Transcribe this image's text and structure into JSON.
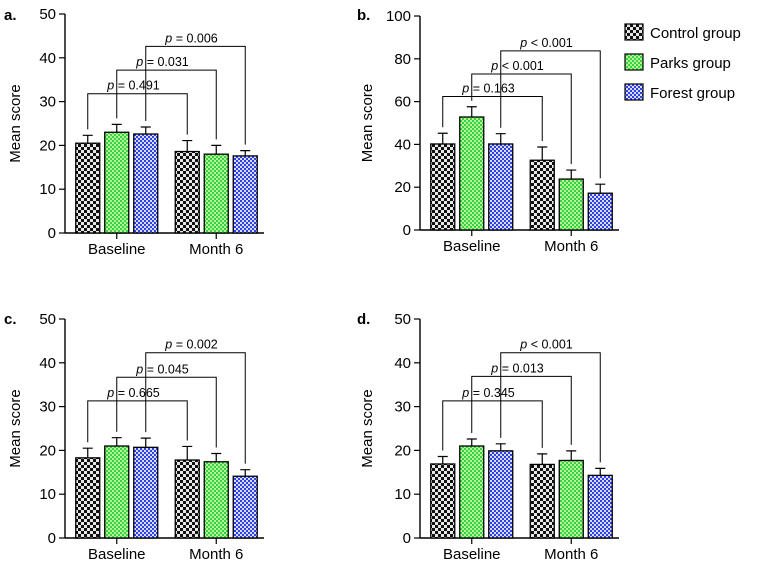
{
  "legend": {
    "items": [
      {
        "label": "Control group",
        "pattern": "pat-control"
      },
      {
        "label": "Parks group",
        "pattern": "pat-parks"
      },
      {
        "label": "Forest group",
        "pattern": "pat-forest"
      }
    ]
  },
  "colors": {
    "control_dark": "#111111",
    "control_light": "#e8e8e8",
    "parks_base": "#b8f58a",
    "parks_dot": "#33d14d",
    "forest_base": "#d8dcff",
    "forest_dot": "#2e3fe6"
  },
  "chart_data": [
    {
      "panel": "a.",
      "type": "bar",
      "ylabel": "Mean score",
      "categories": [
        "Baseline",
        "Month 6"
      ],
      "ylim": [
        0,
        50
      ],
      "yticks": [
        0,
        10,
        20,
        30,
        40,
        50
      ],
      "series": [
        {
          "name": "Control group",
          "values": [
            20.5,
            18.6
          ],
          "errors": [
            1.8,
            2.5
          ]
        },
        {
          "name": "Parks group",
          "values": [
            23.0,
            18.0
          ],
          "errors": [
            1.8,
            2.0
          ]
        },
        {
          "name": "Forest group",
          "values": [
            22.6,
            17.6
          ],
          "errors": [
            1.6,
            1.2
          ]
        }
      ],
      "comparisons": [
        {
          "series": 0,
          "text": "= 0.491",
          "level": 31.8
        },
        {
          "series": 1,
          "text": "= 0.031",
          "level": 37.2
        },
        {
          "series": 2,
          "text": "= 0.006",
          "level": 42.6
        }
      ]
    },
    {
      "panel": "b.",
      "type": "bar",
      "ylabel": "Mean score",
      "categories": [
        "Baseline",
        "Month 6"
      ],
      "ylim": [
        0,
        100
      ],
      "yticks": [
        0,
        20,
        40,
        60,
        80,
        100
      ],
      "series": [
        {
          "name": "Control group",
          "values": [
            40.2,
            32.6
          ],
          "errors": [
            5.0,
            6.2
          ]
        },
        {
          "name": "Parks group",
          "values": [
            52.8,
            23.8
          ],
          "errors": [
            4.8,
            4.2
          ]
        },
        {
          "name": "Forest group",
          "values": [
            40.2,
            17.2
          ],
          "errors": [
            4.8,
            4.2
          ]
        }
      ],
      "comparisons": [
        {
          "series": 0,
          "text": "= 0.163",
          "level": 62.4
        },
        {
          "series": 1,
          "text": "< 0.001",
          "level": 72.9
        },
        {
          "series": 2,
          "text": "< 0.001",
          "level": 83.7
        }
      ]
    },
    {
      "panel": "c.",
      "type": "bar",
      "ylabel": "Mean score",
      "categories": [
        "Baseline",
        "Month 6"
      ],
      "ylim": [
        0,
        50
      ],
      "yticks": [
        0,
        10,
        20,
        30,
        40,
        50
      ],
      "series": [
        {
          "name": "Control group",
          "values": [
            18.3,
            17.8
          ],
          "errors": [
            2.2,
            3.1
          ]
        },
        {
          "name": "Parks group",
          "values": [
            21.0,
            17.4
          ],
          "errors": [
            1.9,
            1.9
          ]
        },
        {
          "name": "Forest group",
          "values": [
            20.7,
            14.1
          ],
          "errors": [
            2.1,
            1.5
          ]
        }
      ],
      "comparisons": [
        {
          "series": 0,
          "text": "= 0.665",
          "level": 31.3
        },
        {
          "series": 1,
          "text": "= 0.045",
          "level": 36.7
        },
        {
          "series": 2,
          "text": "= 0.002",
          "level": 42.3
        }
      ]
    },
    {
      "panel": "d.",
      "type": "bar",
      "ylabel": "Mean score",
      "categories": [
        "Baseline",
        "Month 6"
      ],
      "ylim": [
        0,
        50
      ],
      "yticks": [
        0,
        10,
        20,
        30,
        40,
        50
      ],
      "series": [
        {
          "name": "Control group",
          "values": [
            16.9,
            16.8
          ],
          "errors": [
            1.7,
            2.4
          ]
        },
        {
          "name": "Parks group",
          "values": [
            21.0,
            17.7
          ],
          "errors": [
            1.6,
            2.2
          ]
        },
        {
          "name": "Forest group",
          "values": [
            19.9,
            14.3
          ],
          "errors": [
            1.6,
            1.6
          ]
        }
      ],
      "comparisons": [
        {
          "series": 0,
          "text": "= 0.345",
          "level": 31.3
        },
        {
          "series": 1,
          "text": "= 0.013",
          "level": 36.9
        },
        {
          "series": 2,
          "text": "< 0.001",
          "level": 42.3
        }
      ]
    }
  ]
}
